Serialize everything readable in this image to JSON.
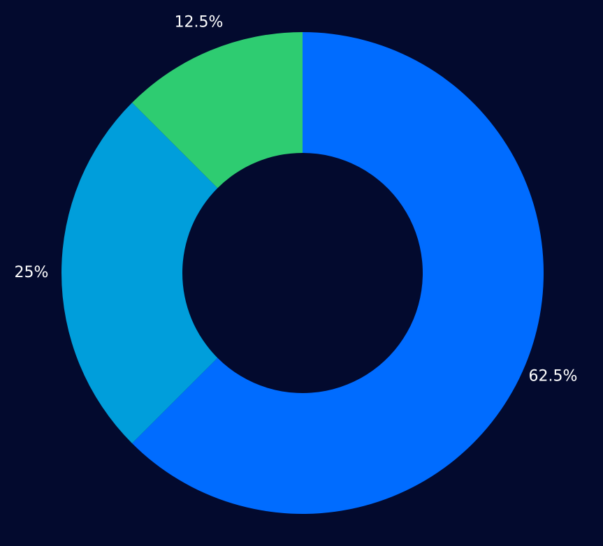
{
  "chart_data": {
    "type": "donut",
    "values": [
      62.5,
      25,
      12.5
    ],
    "value_labels": [
      "62.5%",
      "25%",
      "12.5%"
    ],
    "colors": [
      "#006cff",
      "#009edb",
      "#2ecc71"
    ],
    "background": "#030a2e"
  }
}
